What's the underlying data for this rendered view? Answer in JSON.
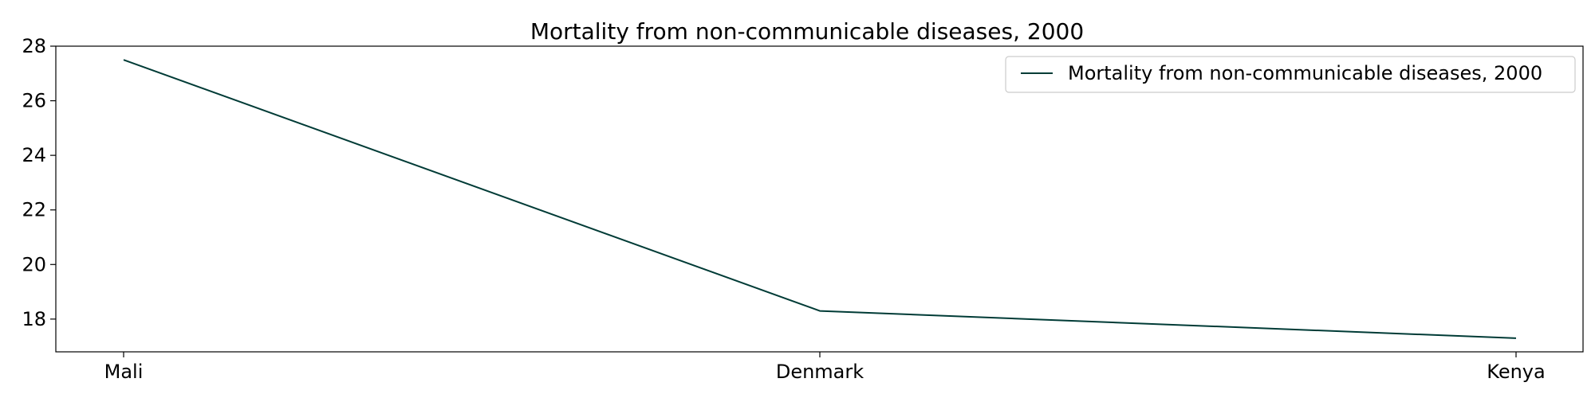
{
  "chart_data": {
    "type": "line",
    "title": "Mortality from non-communicable diseases, 2000",
    "xlabel": "",
    "ylabel": "",
    "categories": [
      "Mali",
      "Denmark",
      "Kenya"
    ],
    "series": [
      {
        "name": "Mortality from non-communicable diseases, 2000",
        "values": [
          27.5,
          18.3,
          17.3
        ],
        "color": "#003b36"
      }
    ],
    "ylim": [
      16.8,
      28.0
    ],
    "yticks": [
      18,
      20,
      22,
      24,
      26,
      28
    ],
    "grid": false,
    "legend": "top-right"
  }
}
